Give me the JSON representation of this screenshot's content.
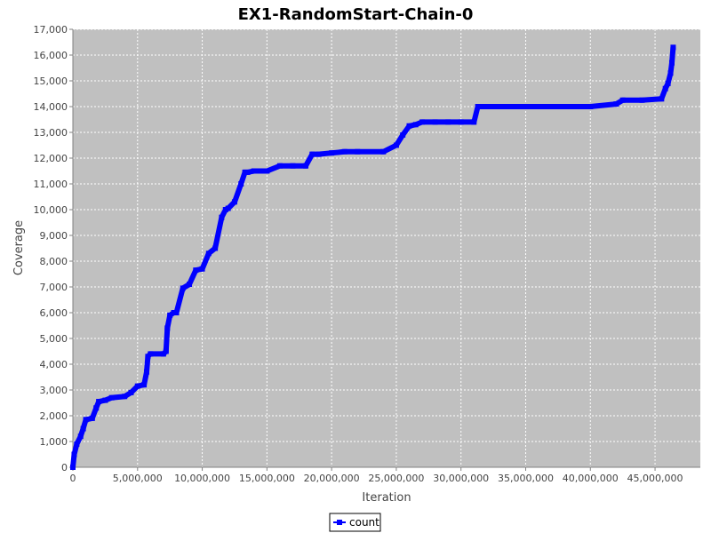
{
  "chart_data": {
    "type": "line",
    "title": "EX1-RandomStart-Chain-0",
    "xlabel": "Iteration",
    "ylabel": "Coverage",
    "xlim": [
      0,
      48500000
    ],
    "ylim": [
      0,
      17000
    ],
    "x_ticks": [
      0,
      5000000,
      10000000,
      15000000,
      20000000,
      25000000,
      30000000,
      35000000,
      40000000,
      45000000
    ],
    "x_tick_labels": [
      "0",
      "5,000,000",
      "10,000,000",
      "15,000,000",
      "20,000,000",
      "25,000,000",
      "30,000,000",
      "35,000,000",
      "40,000,000",
      "45,000,000"
    ],
    "y_ticks": [
      0,
      1000,
      2000,
      3000,
      4000,
      5000,
      6000,
      7000,
      8000,
      9000,
      10000,
      11000,
      12000,
      13000,
      14000,
      15000,
      16000,
      17000
    ],
    "y_tick_labels": [
      "0",
      "1,000",
      "2,000",
      "3,000",
      "4,000",
      "5,000",
      "6,000",
      "7,000",
      "8,000",
      "9,000",
      "10,000",
      "11,000",
      "12,000",
      "13,000",
      "14,000",
      "15,000",
      "16,000",
      "17,000"
    ],
    "grid": true,
    "legend_position": "bottom",
    "colors": {
      "plot_background": "#c0c0c0",
      "grid": "#ffffff",
      "series": "#0000ff",
      "axis": "#808080"
    },
    "series": [
      {
        "name": "count",
        "x": [
          0,
          100000,
          300000,
          600000,
          800000,
          1000000,
          1500000,
          1800000,
          2000000,
          2500000,
          3000000,
          4000000,
          4500000,
          5000000,
          5500000,
          5700000,
          5800000,
          6000000,
          7000000,
          7200000,
          7300000,
          7500000,
          7800000,
          8000000,
          8500000,
          9000000,
          9500000,
          10000000,
          10500000,
          11000000,
          11500000,
          11800000,
          12000000,
          12500000,
          13000000,
          13300000,
          13500000,
          14000000,
          15000000,
          16000000,
          17000000,
          18000000,
          18500000,
          19000000,
          20000000,
          21000000,
          22000000,
          24000000,
          25000000,
          25500000,
          26000000,
          26500000,
          27000000,
          28000000,
          29000000,
          30000000,
          31000000,
          31300000,
          35000000,
          40000000,
          42000000,
          42500000,
          44000000,
          45500000,
          45800000,
          46000000,
          46200000,
          46300000,
          46400000
        ],
        "values": [
          0,
          500,
          900,
          1200,
          1500,
          1850,
          1900,
          2300,
          2550,
          2600,
          2700,
          2750,
          2900,
          3150,
          3200,
          3700,
          4300,
          4400,
          4400,
          4500,
          5400,
          5900,
          6000,
          6000,
          6950,
          7100,
          7650,
          7700,
          8300,
          8500,
          9700,
          10000,
          10050,
          10300,
          11000,
          11450,
          11450,
          11500,
          11500,
          11700,
          11700,
          11700,
          12150,
          12150,
          12200,
          12250,
          12250,
          12250,
          12500,
          12900,
          13250,
          13300,
          13400,
          13400,
          13400,
          13400,
          13400,
          14000,
          14000,
          14000,
          14100,
          14250,
          14250,
          14300,
          14700,
          14900,
          15300,
          15700,
          16300
        ]
      }
    ]
  }
}
